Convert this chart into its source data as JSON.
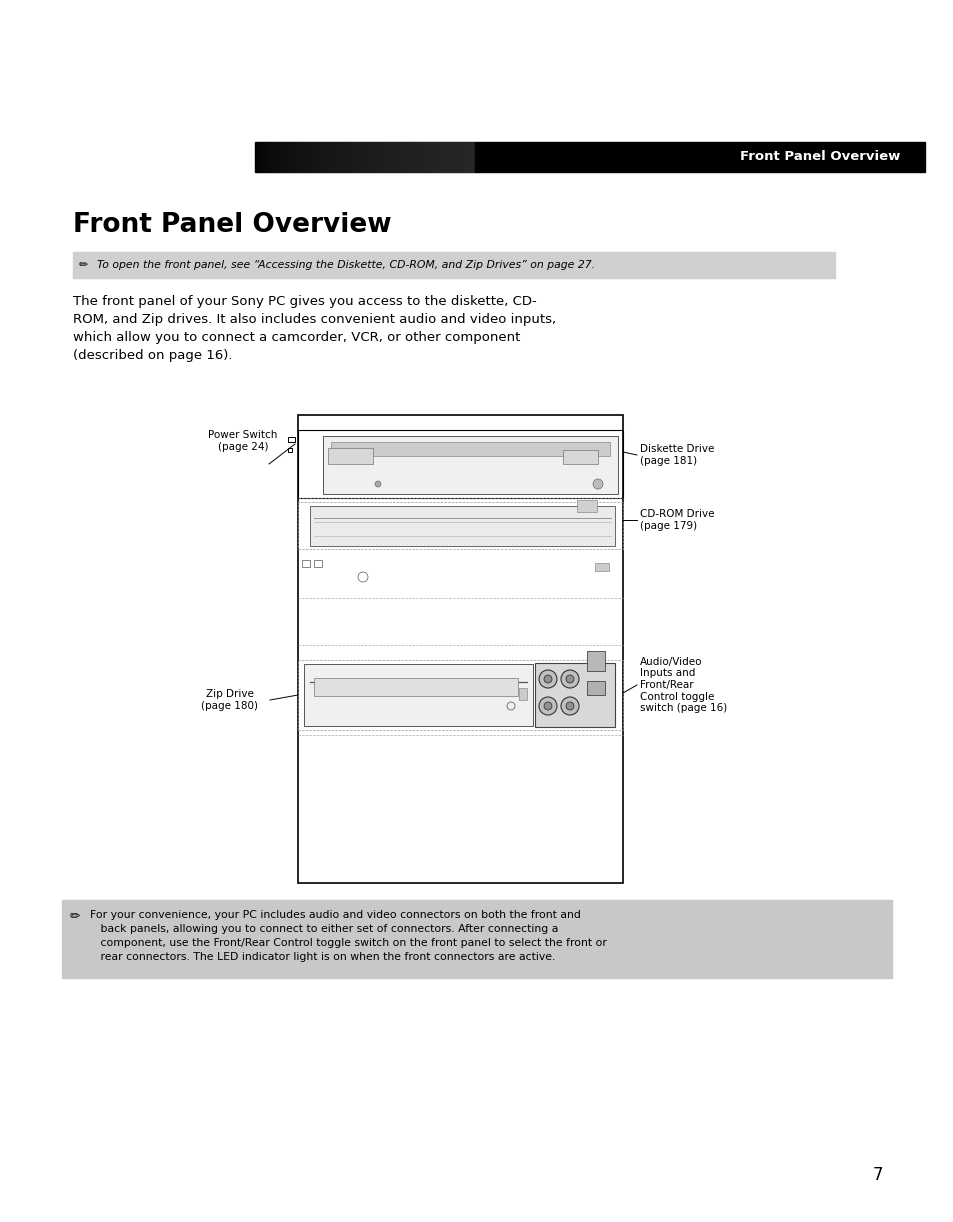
{
  "page_bg": "#ffffff",
  "header_bar_color": "#000000",
  "header_bar_text": "Front Panel Overview",
  "header_bar_text_color": "#ffffff",
  "title": "Front Panel Overview",
  "note1_text": "To open the front panel, see “Accessing the Diskette, CD-ROM, and Zip Drives” on page 27.",
  "body_line1": "The front panel of your Sony PC gives you access to the diskette, CD-",
  "body_line2": "ROM, and Zip drives. It also includes convenient audio and video inputs,",
  "body_line3": "which allow you to connect a camcorder, VCR, or other component",
  "body_line4": "(described on page 16).",
  "note2_text": "For your convenience, your PC includes audio and video connectors on both the front and\n   back panels, allowing you to connect to either set of connectors. After connecting a\n   component, use the Front/Rear Control toggle switch on the front panel to select the front or\n   rear connectors. The LED indicator light is on when the front connectors are active.",
  "page_number": "7",
  "label_power_switch": "Power Switch\n(page 24)",
  "label_diskette": "Diskette Drive\n(page 181)",
  "label_cdrom": "CD-ROM Drive\n(page 179)",
  "label_zip": "Zip Drive\n(page 180)",
  "label_audio": "Audio/Video\nInputs and\nFront/Rear\nControl toggle\nswitch (page 16)"
}
